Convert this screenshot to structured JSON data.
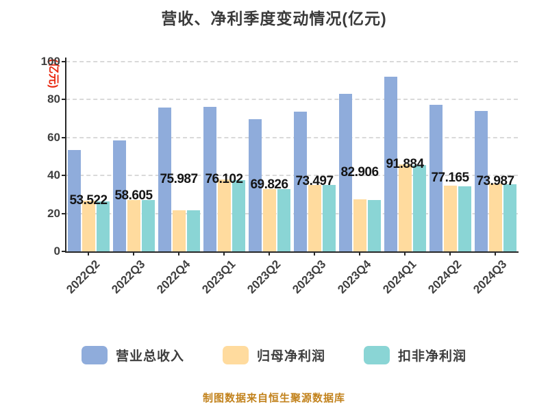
{
  "title": "营收、净利季度变动情况(亿元)",
  "footer": "制图数据来自恒生聚源数据库",
  "colors": {
    "revenue": "#8FACDB",
    "net_profit": "#FFDB9E",
    "deducted_profit": "#8AD5D5",
    "ylabel_text": "#E8250C",
    "footer_text": "#C2821C",
    "grid": "#D9D9D9",
    "axis": "#262626",
    "value_label": "#141414",
    "tick_label": "#3F3F3F"
  },
  "chart_data": {
    "type": "bar",
    "title": "营收、净利季度变动情况(亿元)",
    "ylabel": "(亿元)",
    "xlabel": "",
    "ylim": [
      0,
      100
    ],
    "yticks": [
      0,
      20,
      40,
      60,
      80,
      100
    ],
    "grid": "horizontal dashed",
    "legend_position": "bottom",
    "x_tick_rotation": 45,
    "categories": [
      "2022Q2",
      "2022Q3",
      "2022Q4",
      "2023Q1",
      "2023Q2",
      "2023Q3",
      "2023Q4",
      "2024Q1",
      "2024Q2",
      "2024Q3"
    ],
    "series": [
      {
        "name": "营业总收入",
        "key": "revenue",
        "color": "#8FACDB",
        "labels_shown": true,
        "values": [
          53.522,
          58.605,
          75.987,
          76.102,
          69.826,
          73.497,
          82.906,
          91.884,
          77.165,
          73.987
        ],
        "value_labels": [
          "53.522",
          "58.605",
          "75.987",
          "76.102",
          "69.826",
          "73.497",
          "82.906",
          "91.884",
          "77.165",
          "73.987"
        ]
      },
      {
        "name": "归母净利润",
        "key": "net_profit",
        "color": "#FFDB9E",
        "labels_shown": false,
        "values": [
          26.6,
          27.0,
          21.8,
          37.8,
          32.7,
          35.1,
          27.3,
          45.7,
          34.5,
          35.7
        ]
      },
      {
        "name": "扣非净利润",
        "key": "deducted_profit",
        "color": "#8AD5D5",
        "labels_shown": false,
        "values": [
          26.4,
          26.9,
          21.7,
          37.5,
          32.7,
          35.0,
          27.0,
          45.6,
          34.4,
          35.4
        ]
      }
    ]
  }
}
